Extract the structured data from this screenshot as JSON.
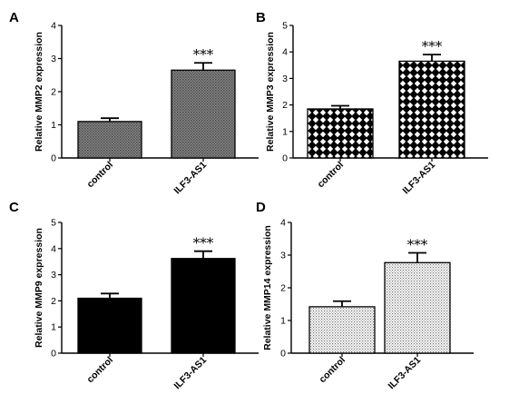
{
  "chart_data": [
    {
      "panel": "A",
      "type": "bar",
      "categories": [
        "control",
        "ILF3-AS1"
      ],
      "values": [
        1.1,
        2.65
      ],
      "errors": [
        0.1,
        0.22
      ],
      "significance": [
        "",
        "***"
      ],
      "ylabel": "Relative MMP2 expression",
      "ylim": [
        0,
        4
      ],
      "yticks": [
        "0",
        "1",
        "2",
        "3",
        "4"
      ],
      "bar_pattern": "dense-dots",
      "bar_color": "#6e6e6e"
    },
    {
      "panel": "B",
      "type": "bar",
      "categories": [
        "control",
        "ILF3-AS1"
      ],
      "values": [
        1.85,
        3.65
      ],
      "errors": [
        0.12,
        0.25
      ],
      "significance": [
        "",
        "***"
      ],
      "ylabel": "Relative MMP3 expression",
      "ylim": [
        0,
        5
      ],
      "yticks": [
        "0",
        "1",
        "2",
        "3",
        "4",
        "5"
      ],
      "bar_pattern": "checkerboard",
      "bar_color": "#000000"
    },
    {
      "panel": "C",
      "type": "bar",
      "categories": [
        "control",
        "ILF3-AS1"
      ],
      "values": [
        2.1,
        3.62
      ],
      "errors": [
        0.18,
        0.28
      ],
      "significance": [
        "",
        "***"
      ],
      "ylabel": "Relative MMP9 expression",
      "ylim": [
        0,
        5
      ],
      "yticks": [
        "0",
        "1",
        "2",
        "3",
        "4",
        "5"
      ],
      "bar_pattern": "solid",
      "bar_color": "#000000"
    },
    {
      "panel": "D",
      "type": "bar",
      "categories": [
        "control",
        "ILF3-AS1"
      ],
      "values": [
        1.42,
        2.77
      ],
      "errors": [
        0.17,
        0.3
      ],
      "significance": [
        "",
        "***"
      ],
      "ylabel": "Relative MMP14 expression",
      "ylim": [
        0,
        4
      ],
      "yticks": [
        "0",
        "1",
        "2",
        "3",
        "4"
      ],
      "bar_pattern": "light-dots",
      "bar_color": "#9a9a9a"
    }
  ]
}
